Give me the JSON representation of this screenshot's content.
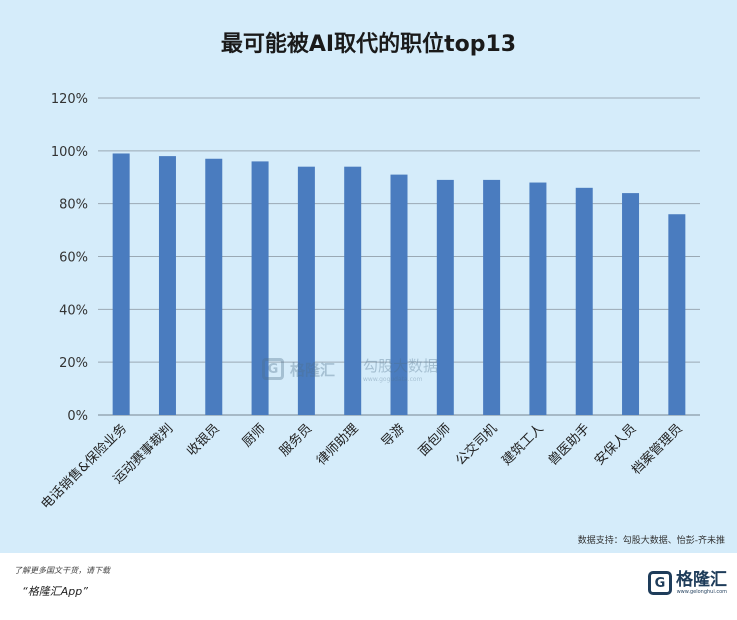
{
  "chart_data": {
    "type": "bar",
    "title": "最可能被AI取代的职位top13",
    "categories": [
      "电话销售&保险业务",
      "运动赛事裁判",
      "收银员",
      "厨师",
      "服务员",
      "律师助理",
      "导游",
      "面包师",
      "公交司机",
      "建筑工人",
      "兽医助手",
      "安保人员",
      "档案管理员"
    ],
    "values": [
      99,
      98,
      97,
      96,
      94,
      94,
      91,
      89,
      89,
      88,
      86,
      84,
      76
    ],
    "ylim": [
      0,
      120
    ],
    "yticks": [
      "0%",
      "20%",
      "40%",
      "60%",
      "80%",
      "100%",
      "120%"
    ],
    "ytick_values": [
      0,
      20,
      40,
      60,
      80,
      100,
      120
    ],
    "grid": true,
    "bar_color": "#4a7cbf",
    "source": "数据支持：勾股大数据、怡彭-齐未推"
  },
  "watermark": {
    "logo_letter": "G",
    "brand": "格隆汇",
    "text": "勾股大数据",
    "url": "www.gogudata.com"
  },
  "footer": {
    "tip": "了解更多国文干货，请下载",
    "app": "“格隆汇App”",
    "brand_logo": "G",
    "brand_name": "格隆汇",
    "brand_url": "www.gelonghui.com"
  },
  "colors": {
    "background": "#d5ecfa",
    "grid": "#9aa9b4",
    "axis": "#8a9aa6"
  }
}
